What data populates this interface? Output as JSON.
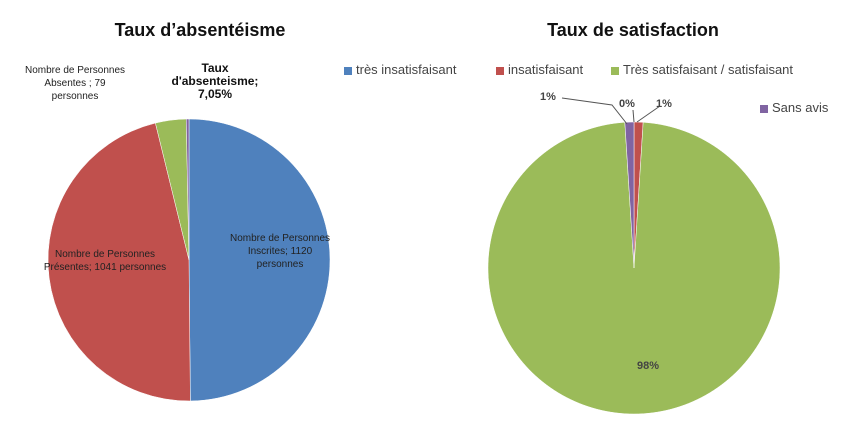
{
  "chart_data": [
    {
      "type": "pie",
      "title": "Taux d’absentéisme",
      "categories": [
        "Nombre de Personnes Inscrites;",
        "Nombre de Personnes Présentes;",
        "Nombre de Personnes Absentes",
        "Taux d'absenteisme;"
      ],
      "values": [
        1120,
        1041,
        79,
        7.05
      ],
      "value_labels": [
        "1120 personnes",
        "1041 personnes",
        "; 79 personnes",
        "7,05%"
      ],
      "colors": [
        "#4f81bd",
        "#c0504d",
        "#9bbb59",
        "#8064a2"
      ]
    },
    {
      "type": "pie",
      "title": "Taux de satisfaction",
      "series": [
        {
          "name": "très insatisfaisant",
          "color": "#4f81bd",
          "values": [
            0
          ],
          "value_labels": [
            "0%"
          ]
        },
        {
          "name": "insatisfaisant",
          "color": "#c0504d",
          "values": [
            1
          ],
          "value_labels": [
            "1%"
          ]
        },
        {
          "name": "Très satisfaisant / satisfaisant",
          "color": "#9bbb59",
          "values": [
            98
          ],
          "value_labels": [
            "98%"
          ]
        },
        {
          "name": "Sans avis",
          "color": "#8064a2",
          "values": [
            1
          ],
          "value_labels": [
            "1%"
          ]
        }
      ]
    }
  ]
}
